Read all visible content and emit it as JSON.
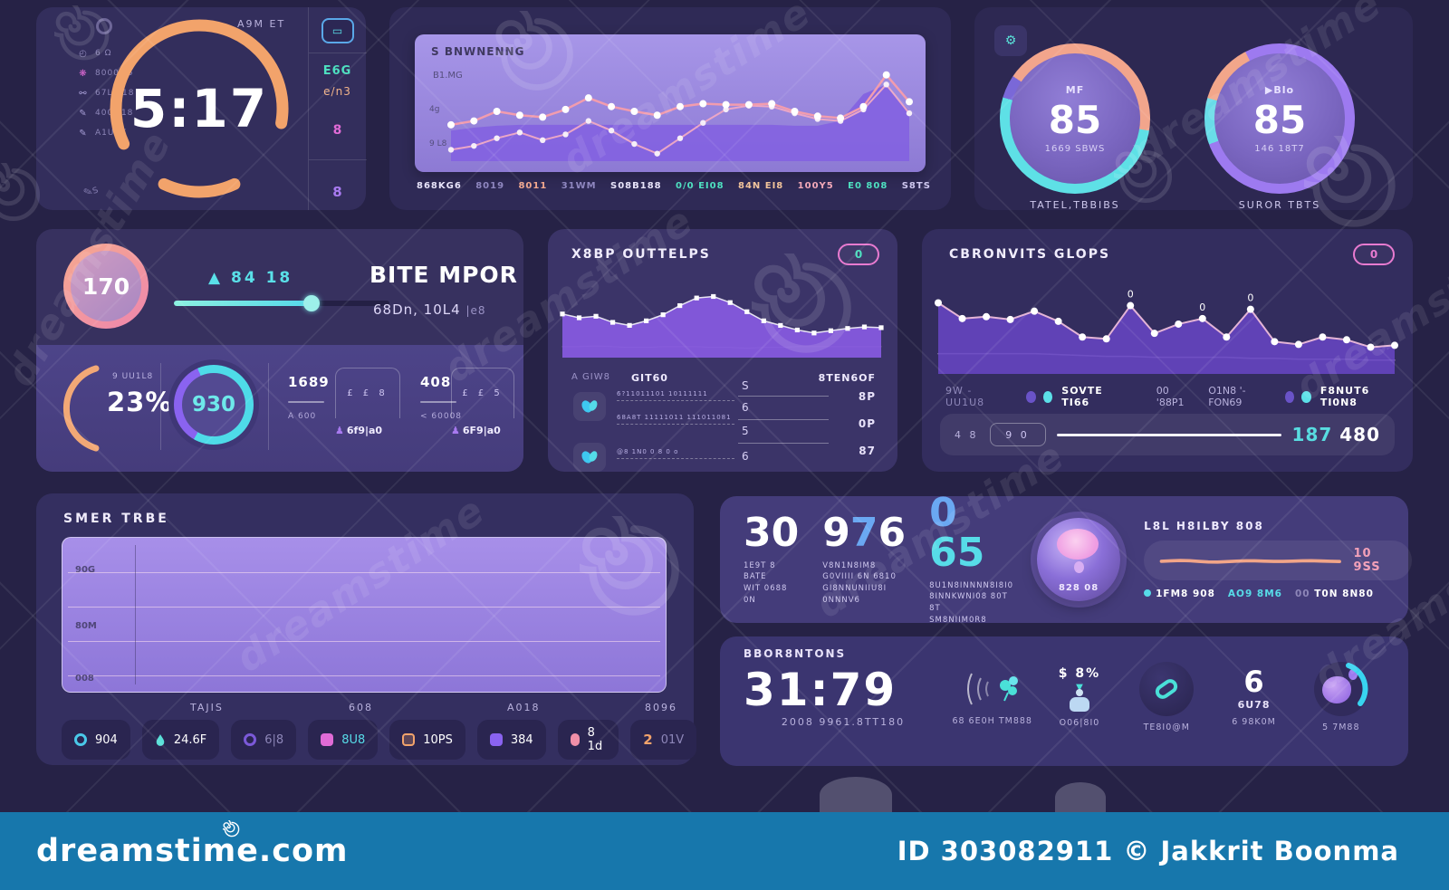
{
  "watermark": {
    "diagonal_text": "dreamstime",
    "bar": {
      "site": "dreamstime.com",
      "credit": "ID 303082911 © Jakkrit Boonma"
    }
  },
  "colors": {
    "accent_orange": "#f2a36b",
    "accent_cyan": "#57dce8",
    "accent_teal": "#4ee0c0",
    "accent_pink": "#f08fa8",
    "accent_magenta": "#e06bd6",
    "accent_purple": "#8a63f0",
    "bar_blue": "#1777ac"
  },
  "card_clock": {
    "top_label": "A9M ET",
    "time": "5:17",
    "menu": [
      {
        "icon": "◴",
        "label": "6 Ω"
      },
      {
        "icon": "❋",
        "label": "8000M6"
      },
      {
        "icon": "⚯",
        "label": "67L8 18"
      },
      {
        "icon": "✎",
        "label": "400M18"
      },
      {
        "icon": "✎",
        "label": "A1U1T"
      }
    ],
    "pencil": "✎s",
    "side": {
      "btn": "▭",
      "v1": "E6G",
      "v2": "e/n3",
      "g1": "8",
      "g2": "8"
    }
  },
  "card_trend": {
    "title": "S BNWNENNG",
    "subtitle": "B1.MG",
    "y1": "4g",
    "y2": "9 L8",
    "x_labels": [
      {
        "t": "868KG6",
        "c": "#e8e4fa"
      },
      {
        "t": "8019",
        "c": "#8f87c0"
      },
      {
        "t": "8011",
        "c": "#f2a88e"
      },
      {
        "t": "31WM",
        "c": "#8f87c0"
      },
      {
        "t": "S08B188",
        "c": "#e8e4fa"
      },
      {
        "t": "0/0 EI08",
        "c": "#4ee0c0"
      },
      {
        "t": "84N EI8",
        "c": "#f2c49a"
      },
      {
        "t": "100Y5",
        "c": "#f2a8b8"
      },
      {
        "t": "E0 808",
        "c": "#4ee0c0"
      },
      {
        "t": "S8TS",
        "c": "#cfc8f0"
      }
    ]
  },
  "card_gauges": {
    "icon_glyph": "⚙",
    "g1": {
      "tag": "MF",
      "value": "85",
      "sub": "1669 SBWS",
      "caption": "TATEL,TBBIBS"
    },
    "g2": {
      "tag": "▶Blo",
      "value": "85",
      "sub": "146 18T7",
      "caption": "SUROR TBTS"
    }
  },
  "card_bite": {
    "circle_value": "170",
    "slider_label": "▲ 84 18",
    "title": "BITE MPOR",
    "subtitle": "68Dn, 10L4",
    "subtitle_dim": "|e8",
    "arc_label": "9 UU1L8",
    "arc_value": "23%",
    "ring_value": "930",
    "s1": "1689",
    "s1b": "A 600",
    "panel1_icons": "£ £ 8",
    "panel1_cap": "6f9|a0",
    "s2": "408",
    "s2b": "< 60008",
    "panel2_icons": "£ £ 5",
    "panel2_cap": "6F9|a0",
    "panel_cap_icon": "♟"
  },
  "card_out": {
    "title": "X8BP OUTTELPS",
    "pill": "0",
    "h1": "A GIW8",
    "h2": "GIT60",
    "h3": "8TEN6OF",
    "row1a": "6?11011101 10111111",
    "row1b": "68A8T 11111011 111011081",
    "row2a": "@8 1N0 0 8 0 o",
    "mid": [
      "S",
      "6",
      "5",
      "6"
    ],
    "right": [
      "8P",
      "0P",
      "87"
    ]
  },
  "card_conv": {
    "title": "CBRONVITS GLOPS",
    "pill": "0",
    "legend_dim1": "9W - UU1U8",
    "legend1": "SOVTE TI66",
    "legend_dim2": "00 '88P1",
    "legend_dim3": "O1N8 '-FON69",
    "legend2": "F8NUT6 TI0N8",
    "p_small": "4 8",
    "p_box": "9 0",
    "p_value_a": "187",
    "p_value_b": "480"
  },
  "card_smer": {
    "title": "SMER TRBE",
    "y_labels": [
      "90G",
      "80M",
      "008"
    ],
    "x_labels": [
      "TAJIS",
      "608",
      "A018",
      "8096"
    ],
    "chips": [
      {
        "v": "904"
      },
      {
        "v": "24.6F"
      },
      {
        "v": "6|8"
      },
      {
        "v": "8U8"
      },
      {
        "v": "10PS"
      },
      {
        "v": "384"
      },
      {
        "v": "8 1d"
      },
      {
        "n": "2",
        "v": "01V"
      }
    ]
  },
  "card_stats": {
    "v1": "30",
    "v1a": "1E9T 8 BATE",
    "v1b": "WIT 0688 0N",
    "v2a_part": "9",
    "v2b_part": "7",
    "v2c_part": "6",
    "v2sub1": "V8N1N8IM8 G0VIIII 6N 6810",
    "v2sub2": "GI8NNUNIIU8I 0NNNV6",
    "v3a_part": "0",
    "v3b_part": "65",
    "v3sub1": "8U1N8INNNN8I8I0",
    "v3sub2": "8INNKWNI08 80T 8T",
    "v3sub3": "SM8NIIM0R8",
    "orb_label": "828 08",
    "right_title": "L8L H8ILBY 808",
    "spark_value": "10 9SS",
    "leg1": "1FM8 908",
    "leg2": "AO9 8M6",
    "leg3a": "00",
    "leg3b": "T0N 8N80"
  },
  "card_ops": {
    "header": "BBOR8NTONS",
    "time": "31:79",
    "time_sub": "2008 9961.8TT180",
    "cap1": "68 6E0H TM888",
    "money": "$ 8%",
    "cap2": "O06|8I0",
    "cap3": "TE8I0@M",
    "six": "6",
    "six_sub": "6U78",
    "cap4": "6 98K0M",
    "cap5": "5 7M88"
  },
  "chart_data": {
    "trend": {
      "type": "line",
      "ylim": [
        0,
        100
      ],
      "grid": false,
      "legend_position": "none",
      "series": [
        {
          "name": "volume-area",
          "values": [
            30,
            33,
            35,
            36,
            36,
            36,
            36,
            36,
            36,
            36,
            36,
            36,
            36,
            36,
            36,
            35,
            35,
            40,
            68,
            78,
            50
          ],
          "area": true,
          "fill": "rgba(132,99,224,0.95)",
          "line": false
        },
        {
          "name": "series-b",
          "values": [
            10,
            14,
            22,
            28,
            20,
            26,
            40,
            30,
            16,
            6,
            22,
            38,
            52,
            56,
            55,
            48,
            42,
            40,
            52,
            78,
            48
          ],
          "color": "#eba6c6",
          "width": 2,
          "dots": true,
          "dotColor": "#f6eef8",
          "dotr": 3.2
        },
        {
          "name": "series-a",
          "values": [
            36,
            40,
            50,
            46,
            44,
            52,
            64,
            55,
            50,
            46,
            55,
            58,
            57,
            57,
            58,
            50,
            45,
            43,
            55,
            88,
            60
          ],
          "color": "#f29cae",
          "width": 2.5,
          "dots": true,
          "dotColor": "#ffffff",
          "dotr": 4
        }
      ]
    },
    "outflow": {
      "type": "area",
      "ylim": [
        0,
        100
      ],
      "grid": false,
      "series": [
        {
          "name": "baseline",
          "values": [
            12,
            12,
            13,
            12,
            11,
            11,
            12,
            12,
            12,
            11,
            11,
            10,
            11,
            11,
            12,
            12,
            12,
            12,
            12,
            12
          ],
          "color": "rgba(255,255,255,0.35)",
          "width": 1
        },
        {
          "name": "flow",
          "values": [
            55,
            50,
            52,
            44,
            40,
            46,
            54,
            66,
            76,
            78,
            70,
            58,
            46,
            40,
            34,
            30,
            33,
            36,
            38,
            37
          ],
          "area": true,
          "fill": "rgba(136,90,226,0.92)",
          "color": "rgba(255,255,255,0.85)",
          "width": 1.5,
          "dots": true,
          "dotColor": "#ffffff",
          "marker": "square",
          "dotr": 2.6
        }
      ]
    },
    "convits": {
      "type": "line",
      "ylim": [
        0,
        100
      ],
      "grid": false,
      "series": [
        {
          "name": "lower",
          "values": [
            20,
            20,
            20,
            20,
            20,
            19,
            18,
            17,
            17,
            16,
            16,
            16,
            16,
            15,
            15,
            14,
            14,
            14,
            13,
            13
          ],
          "color": "rgba(230,205,255,0.55)",
          "width": 1.5
        },
        {
          "name": "main",
          "values": [
            75,
            58,
            60,
            57,
            66,
            55,
            38,
            36,
            72,
            42,
            52,
            58,
            38,
            68,
            33,
            30,
            38,
            35,
            27,
            29
          ],
          "area": true,
          "fill": "rgba(104,70,198,0.85)",
          "color": "#e4b4d6",
          "width": 2,
          "dots": true,
          "dotColor": "#ffffff",
          "dotr": 4
        }
      ],
      "labels": [
        {
          "i": 8,
          "text": "0"
        },
        {
          "i": 11,
          "text": "0"
        },
        {
          "i": 13,
          "text": "0"
        }
      ]
    },
    "spark": {
      "type": "line",
      "ylim": [
        0,
        100
      ],
      "grid": false,
      "series": [
        {
          "name": "health",
          "values": [
            50,
            53,
            56,
            54,
            49,
            45,
            44,
            47,
            51,
            53,
            53,
            51,
            49,
            49,
            51,
            53,
            54,
            52,
            50,
            48
          ],
          "color": "#f2a588",
          "width": 4
        }
      ]
    },
    "smer_plot": {
      "type": "line",
      "note": "empty grid plot, gridlines only",
      "yticks": [
        "90G",
        "80M",
        "008"
      ],
      "xticks": [
        "TAJIS",
        "608",
        "A018",
        "8096"
      ],
      "series": []
    }
  }
}
